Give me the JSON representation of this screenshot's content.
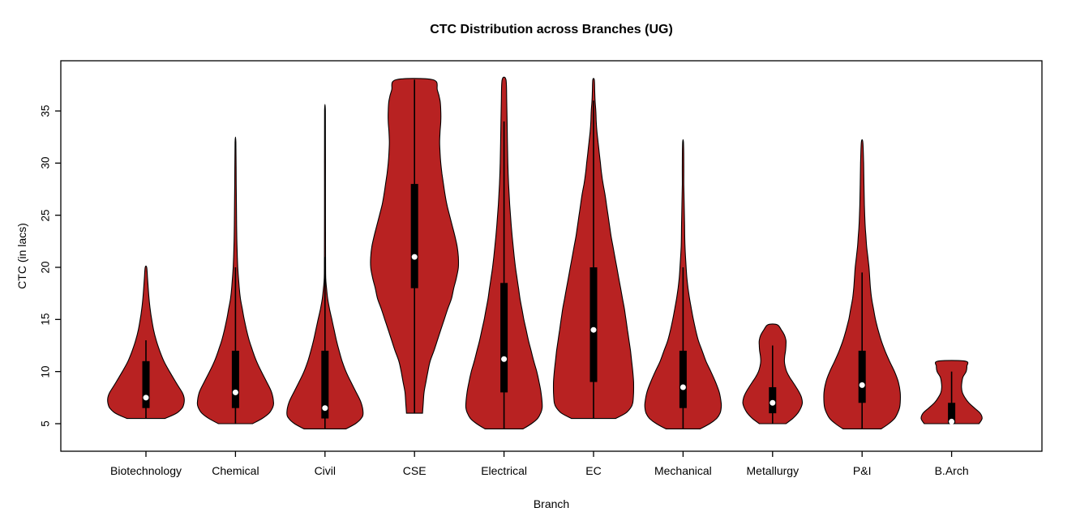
{
  "chart_data": {
    "type": "violin",
    "title": "CTC Distribution across Branches (UG)",
    "xlabel": "Branch",
    "ylabel": "CTC (in lacs)",
    "y_ticks": [
      5,
      10,
      15,
      20,
      25,
      30,
      35
    ],
    "ylim": [
      3.2,
      39.3
    ],
    "fill_color": "#b82222",
    "outline_color": "#000000",
    "median_dot_color": "#ffffff",
    "series": [
      {
        "branch": "Biotechnology",
        "min": 5.5,
        "max": 20,
        "q1": 6.5,
        "median": 7.5,
        "q3": 11,
        "whisker_low": 5.5,
        "whisker_high": 13,
        "profile": [
          [
            5.5,
            0.5
          ],
          [
            6,
            0.8
          ],
          [
            6.5,
            0.95
          ],
          [
            7,
            1.0
          ],
          [
            7.5,
            1.0
          ],
          [
            8,
            0.95
          ],
          [
            9,
            0.78
          ],
          [
            10,
            0.62
          ],
          [
            11,
            0.47
          ],
          [
            12,
            0.36
          ],
          [
            13,
            0.27
          ],
          [
            14,
            0.2
          ],
          [
            15,
            0.15
          ],
          [
            16,
            0.11
          ],
          [
            17,
            0.08
          ],
          [
            18,
            0.06
          ],
          [
            19,
            0.04
          ],
          [
            20,
            0.02
          ]
        ]
      },
      {
        "branch": "Chemical",
        "min": 5,
        "max": 32,
        "q1": 6.5,
        "median": 8,
        "q3": 12,
        "whisker_low": 5,
        "whisker_high": 20,
        "profile": [
          [
            5,
            0.45
          ],
          [
            5.5,
            0.7
          ],
          [
            6,
            0.88
          ],
          [
            6.5,
            0.97
          ],
          [
            7,
            1.0
          ],
          [
            8,
            0.95
          ],
          [
            9,
            0.82
          ],
          [
            10,
            0.68
          ],
          [
            11,
            0.55
          ],
          [
            12,
            0.45
          ],
          [
            13,
            0.36
          ],
          [
            14,
            0.29
          ],
          [
            15,
            0.23
          ],
          [
            16,
            0.18
          ],
          [
            17,
            0.13
          ],
          [
            18,
            0.1
          ],
          [
            20,
            0.06
          ],
          [
            22,
            0.04
          ],
          [
            24,
            0.03
          ],
          [
            28,
            0.02
          ],
          [
            32,
            0.01
          ]
        ]
      },
      {
        "branch": "Civil",
        "min": 4.5,
        "max": 35,
        "q1": 5.5,
        "median": 6.5,
        "q3": 12,
        "whisker_low": 4.5,
        "whisker_high": 21,
        "profile": [
          [
            4.5,
            0.55
          ],
          [
            5,
            0.8
          ],
          [
            5.5,
            0.95
          ],
          [
            6,
            1.0
          ],
          [
            7,
            0.95
          ],
          [
            8,
            0.82
          ],
          [
            9,
            0.68
          ],
          [
            10,
            0.55
          ],
          [
            11,
            0.45
          ],
          [
            12,
            0.37
          ],
          [
            13,
            0.3
          ],
          [
            14,
            0.24
          ],
          [
            15,
            0.18
          ],
          [
            16,
            0.12
          ],
          [
            17,
            0.07
          ],
          [
            18,
            0.04
          ],
          [
            19,
            0.02
          ],
          [
            21,
            0.015
          ],
          [
            25,
            0.012
          ],
          [
            30,
            0.012
          ],
          [
            35,
            0.01
          ]
        ]
      },
      {
        "branch": "CSE",
        "min": 6,
        "max": 38,
        "q1": 18,
        "median": 21,
        "q3": 28,
        "whisker_low": 6,
        "whisker_high": 38,
        "profile": [
          [
            6,
            0.21
          ],
          [
            7,
            0.23
          ],
          [
            8,
            0.25
          ],
          [
            9,
            0.3
          ],
          [
            10,
            0.35
          ],
          [
            11,
            0.41
          ],
          [
            12,
            0.51
          ],
          [
            13,
            0.6
          ],
          [
            14,
            0.69
          ],
          [
            15,
            0.78
          ],
          [
            16,
            0.87
          ],
          [
            17,
            0.97
          ],
          [
            18,
            1.03
          ],
          [
            19,
            1.1
          ],
          [
            20,
            1.15
          ],
          [
            21,
            1.15
          ],
          [
            22,
            1.12
          ],
          [
            23,
            1.06
          ],
          [
            24,
            0.99
          ],
          [
            25,
            0.92
          ],
          [
            26,
            0.85
          ],
          [
            27,
            0.8
          ],
          [
            28,
            0.76
          ],
          [
            29,
            0.72
          ],
          [
            30,
            0.69
          ],
          [
            31,
            0.67
          ],
          [
            32,
            0.66
          ],
          [
            33,
            0.67
          ],
          [
            34,
            0.69
          ],
          [
            35,
            0.69
          ],
          [
            36,
            0.67
          ],
          [
            37,
            0.6
          ],
          [
            38,
            0.48
          ]
        ]
      },
      {
        "branch": "Electrical",
        "min": 4.5,
        "max": 38,
        "q1": 8,
        "median": 11.2,
        "q3": 18.5,
        "whisker_low": 4.5,
        "whisker_high": 34,
        "profile": [
          [
            4.5,
            0.5
          ],
          [
            5,
            0.72
          ],
          [
            5.5,
            0.88
          ],
          [
            6,
            0.96
          ],
          [
            6.5,
            1.0
          ],
          [
            7,
            1.0
          ],
          [
            8,
            0.97
          ],
          [
            9,
            0.92
          ],
          [
            10,
            0.86
          ],
          [
            11,
            0.78
          ],
          [
            12,
            0.71
          ],
          [
            13,
            0.64
          ],
          [
            14,
            0.58
          ],
          [
            15,
            0.52
          ],
          [
            16,
            0.47
          ],
          [
            17,
            0.42
          ],
          [
            18,
            0.38
          ],
          [
            19,
            0.34
          ],
          [
            20,
            0.3
          ],
          [
            22,
            0.24
          ],
          [
            24,
            0.19
          ],
          [
            26,
            0.15
          ],
          [
            28,
            0.12
          ],
          [
            30,
            0.1
          ],
          [
            32,
            0.09
          ],
          [
            34,
            0.08
          ],
          [
            36,
            0.07
          ],
          [
            38,
            0.05
          ]
        ]
      },
      {
        "branch": "EC",
        "min": 5.5,
        "max": 38,
        "q1": 9,
        "median": 14,
        "q3": 20,
        "whisker_low": 5.5,
        "whisker_high": 36,
        "profile": [
          [
            5.5,
            0.58
          ],
          [
            6,
            0.84
          ],
          [
            6.5,
            0.97
          ],
          [
            7,
            1.03
          ],
          [
            8,
            1.05
          ],
          [
            9,
            1.05
          ],
          [
            10,
            1.03
          ],
          [
            11,
            1.0
          ],
          [
            12,
            0.97
          ],
          [
            13,
            0.93
          ],
          [
            14,
            0.89
          ],
          [
            15,
            0.85
          ],
          [
            16,
            0.81
          ],
          [
            17,
            0.76
          ],
          [
            18,
            0.71
          ],
          [
            19,
            0.66
          ],
          [
            20,
            0.61
          ],
          [
            21,
            0.56
          ],
          [
            22,
            0.51
          ],
          [
            23,
            0.46
          ],
          [
            24,
            0.42
          ],
          [
            25,
            0.38
          ],
          [
            26,
            0.34
          ],
          [
            27,
            0.3
          ],
          [
            28,
            0.25
          ],
          [
            29,
            0.21
          ],
          [
            30,
            0.18
          ],
          [
            31,
            0.15
          ],
          [
            32,
            0.12
          ],
          [
            33,
            0.09
          ],
          [
            34,
            0.07
          ],
          [
            35,
            0.06
          ],
          [
            36,
            0.04
          ],
          [
            37,
            0.03
          ],
          [
            38,
            0.02
          ]
        ]
      },
      {
        "branch": "Mechanical",
        "min": 4.5,
        "max": 32,
        "q1": 6.5,
        "median": 8.5,
        "q3": 12,
        "whisker_low": 4.5,
        "whisker_high": 20,
        "profile": [
          [
            4.5,
            0.45
          ],
          [
            5,
            0.7
          ],
          [
            5.5,
            0.88
          ],
          [
            6,
            0.97
          ],
          [
            6.5,
            1.0
          ],
          [
            7,
            1.0
          ],
          [
            8,
            0.95
          ],
          [
            9,
            0.85
          ],
          [
            10,
            0.73
          ],
          [
            11,
            0.6
          ],
          [
            12,
            0.5
          ],
          [
            13,
            0.4
          ],
          [
            14,
            0.33
          ],
          [
            15,
            0.27
          ],
          [
            16,
            0.22
          ],
          [
            17,
            0.17
          ],
          [
            18,
            0.13
          ],
          [
            19,
            0.1
          ],
          [
            20,
            0.08
          ],
          [
            22,
            0.05
          ],
          [
            24,
            0.04
          ],
          [
            26,
            0.03
          ],
          [
            28,
            0.02
          ],
          [
            30,
            0.02
          ],
          [
            32,
            0.01
          ]
        ]
      },
      {
        "branch": "Metallurgy",
        "min": 5,
        "max": 14.5,
        "q1": 6,
        "median": 7,
        "q3": 8.5,
        "whisker_low": 5,
        "whisker_high": 12.5,
        "profile": [
          [
            5,
            0.35
          ],
          [
            5.5,
            0.53
          ],
          [
            6,
            0.66
          ],
          [
            6.5,
            0.74
          ],
          [
            7,
            0.78
          ],
          [
            7.5,
            0.76
          ],
          [
            8,
            0.7
          ],
          [
            8.5,
            0.62
          ],
          [
            9,
            0.53
          ],
          [
            9.5,
            0.44
          ],
          [
            10,
            0.37
          ],
          [
            10.5,
            0.33
          ],
          [
            11,
            0.31
          ],
          [
            11.5,
            0.32
          ],
          [
            12,
            0.34
          ],
          [
            12.5,
            0.35
          ],
          [
            13,
            0.35
          ],
          [
            13.5,
            0.31
          ],
          [
            14,
            0.23
          ],
          [
            14.5,
            0.12
          ]
        ]
      },
      {
        "branch": "P&I",
        "min": 4.5,
        "max": 32,
        "q1": 7,
        "median": 8.7,
        "q3": 12,
        "whisker_low": 4.5,
        "whisker_high": 19.5,
        "profile": [
          [
            4.5,
            0.5
          ],
          [
            5,
            0.7
          ],
          [
            5.5,
            0.85
          ],
          [
            6,
            0.93
          ],
          [
            6.5,
            0.98
          ],
          [
            7,
            1.0
          ],
          [
            8,
            1.0
          ],
          [
            9,
            0.95
          ],
          [
            10,
            0.85
          ],
          [
            11,
            0.72
          ],
          [
            12,
            0.6
          ],
          [
            13,
            0.5
          ],
          [
            14,
            0.42
          ],
          [
            15,
            0.35
          ],
          [
            16,
            0.3
          ],
          [
            17,
            0.25
          ],
          [
            18,
            0.22
          ],
          [
            19,
            0.2
          ],
          [
            20,
            0.18
          ],
          [
            21,
            0.15
          ],
          [
            22,
            0.12
          ],
          [
            23,
            0.1
          ],
          [
            24,
            0.08
          ],
          [
            26,
            0.06
          ],
          [
            28,
            0.05
          ],
          [
            30,
            0.04
          ],
          [
            32,
            0.02
          ]
        ]
      },
      {
        "branch": "B.Arch",
        "min": 5,
        "max": 11,
        "q1": 5,
        "median": 5.2,
        "q3": 7,
        "whisker_low": 5,
        "whisker_high": 10,
        "profile": [
          [
            5,
            0.72
          ],
          [
            5.5,
            0.8
          ],
          [
            6,
            0.75
          ],
          [
            6.5,
            0.6
          ],
          [
            7,
            0.45
          ],
          [
            7.5,
            0.35
          ],
          [
            8,
            0.28
          ],
          [
            8.5,
            0.26
          ],
          [
            9,
            0.27
          ],
          [
            9.5,
            0.3
          ],
          [
            10,
            0.38
          ],
          [
            10.5,
            0.4
          ],
          [
            11,
            0.36
          ]
        ]
      }
    ]
  }
}
